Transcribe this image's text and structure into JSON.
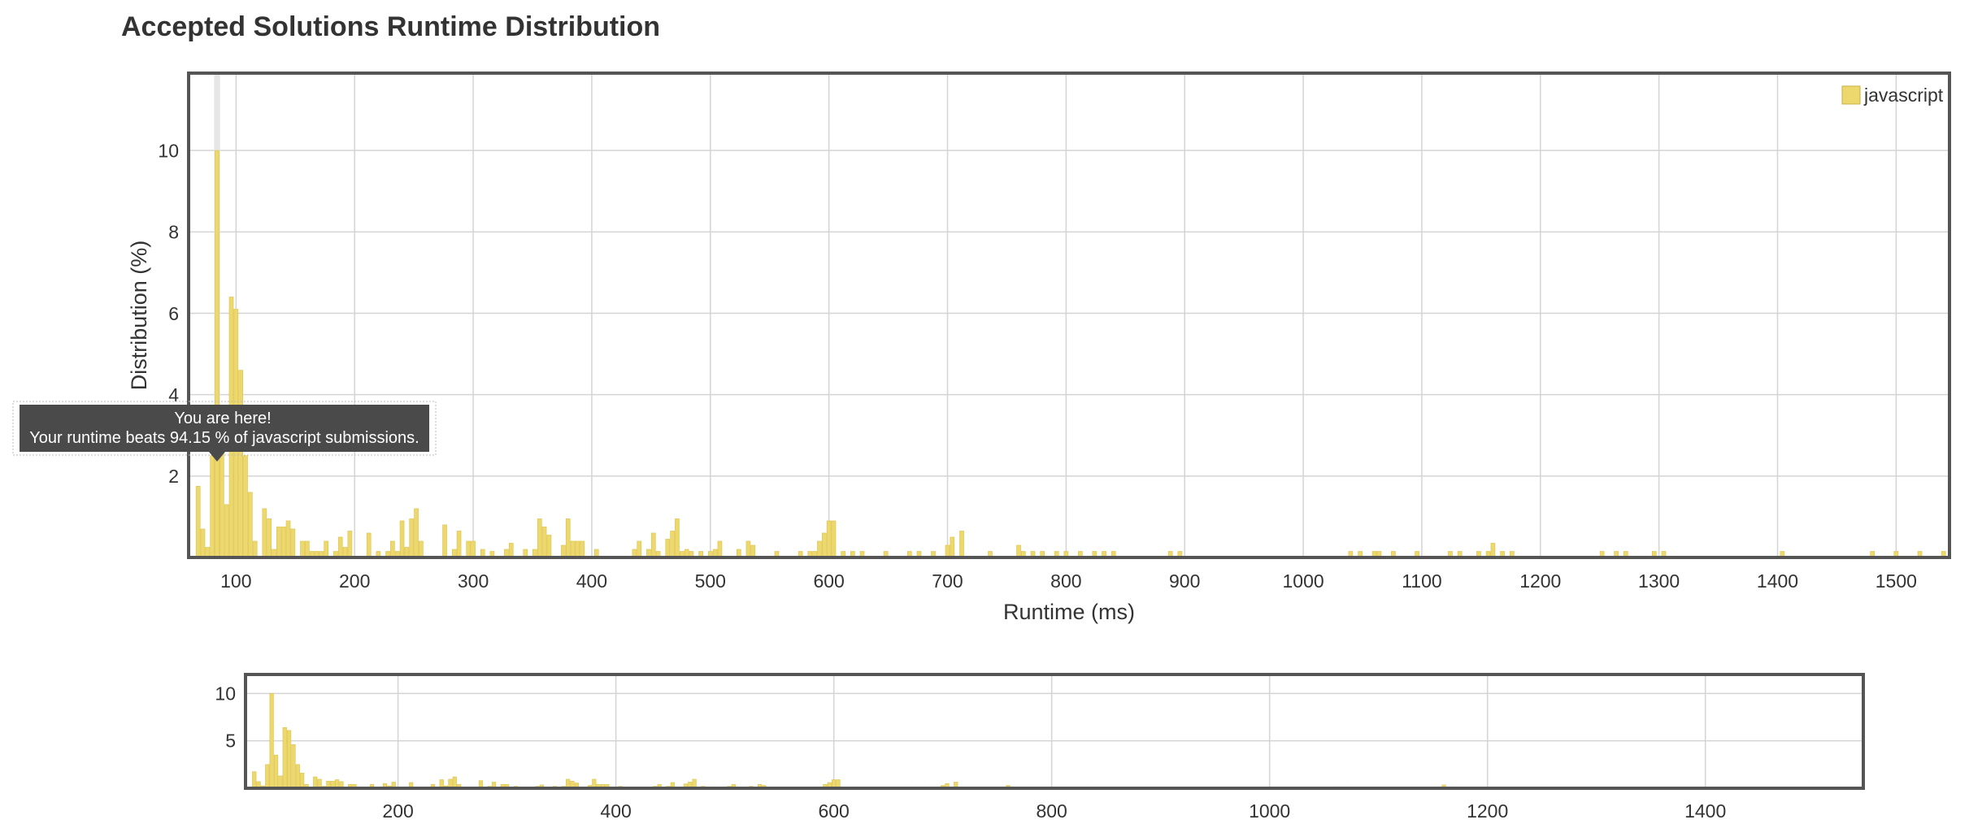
{
  "title": "Accepted Solutions Runtime Distribution",
  "tooltip": {
    "line1": "You are here!",
    "line2": "Your runtime beats 94.15 % of javascript submissions."
  },
  "colors": {
    "bar": "#edd86e",
    "bar_stroke": "#dcc24a",
    "highlight": "#e6e6e6",
    "tooltip_bg": "#4a4a4a",
    "frame": "#555555",
    "grid": "#d4d4d4"
  },
  "chart_data": [
    {
      "type": "bar",
      "role": "main",
      "xlabel": "Runtime (ms)",
      "ylabel": "Distribution (%)",
      "xlim": [
        60,
        1545
      ],
      "ylim": [
        0,
        11.9
      ],
      "xticks": [
        100,
        200,
        300,
        400,
        500,
        600,
        700,
        800,
        900,
        1000,
        1100,
        1200,
        1300,
        1400,
        1500
      ],
      "yticks": [
        2,
        4,
        6,
        8,
        10
      ],
      "grid": true,
      "legend": {
        "position": "top-right",
        "entries": [
          "javascript"
        ]
      },
      "highlight_x": 84,
      "series": [
        {
          "name": "javascript",
          "bin_width": 4,
          "points": [
            [
              68,
              1.75
            ],
            [
              72,
              0.7
            ],
            [
              76,
              0.25
            ],
            [
              80,
              2.5
            ],
            [
              84,
              10.0
            ],
            [
              88,
              3.5
            ],
            [
              92,
              1.3
            ],
            [
              96,
              6.4
            ],
            [
              100,
              6.1
            ],
            [
              104,
              4.6
            ],
            [
              108,
              2.5
            ],
            [
              112,
              1.6
            ],
            [
              116,
              0.4
            ],
            [
              124,
              1.2
            ],
            [
              128,
              0.95
            ],
            [
              132,
              0.2
            ],
            [
              136,
              0.75
            ],
            [
              140,
              0.75
            ],
            [
              144,
              0.9
            ],
            [
              148,
              0.7
            ],
            [
              156,
              0.4
            ],
            [
              160,
              0.4
            ],
            [
              164,
              0.15
            ],
            [
              168,
              0.15
            ],
            [
              172,
              0.15
            ],
            [
              176,
              0.4
            ],
            [
              184,
              0.15
            ],
            [
              188,
              0.5
            ],
            [
              192,
              0.25
            ],
            [
              196,
              0.65
            ],
            [
              212,
              0.6
            ],
            [
              220,
              0.15
            ],
            [
              228,
              0.15
            ],
            [
              232,
              0.4
            ],
            [
              236,
              0.15
            ],
            [
              240,
              0.9
            ],
            [
              244,
              0.25
            ],
            [
              248,
              0.95
            ],
            [
              252,
              1.2
            ],
            [
              256,
              0.4
            ],
            [
              276,
              0.8
            ],
            [
              284,
              0.2
            ],
            [
              288,
              0.65
            ],
            [
              296,
              0.4
            ],
            [
              300,
              0.4
            ],
            [
              308,
              0.2
            ],
            [
              316,
              0.15
            ],
            [
              328,
              0.2
            ],
            [
              332,
              0.35
            ],
            [
              344,
              0.2
            ],
            [
              352,
              0.2
            ],
            [
              356,
              0.95
            ],
            [
              360,
              0.75
            ],
            [
              364,
              0.55
            ],
            [
              376,
              0.3
            ],
            [
              380,
              0.95
            ],
            [
              384,
              0.4
            ],
            [
              388,
              0.4
            ],
            [
              392,
              0.4
            ],
            [
              404,
              0.2
            ],
            [
              436,
              0.2
            ],
            [
              440,
              0.4
            ],
            [
              448,
              0.2
            ],
            [
              452,
              0.6
            ],
            [
              456,
              0.15
            ],
            [
              464,
              0.45
            ],
            [
              468,
              0.65
            ],
            [
              472,
              0.95
            ],
            [
              476,
              0.15
            ],
            [
              480,
              0.2
            ],
            [
              484,
              0.15
            ],
            [
              492,
              0.15
            ],
            [
              500,
              0.15
            ],
            [
              504,
              0.2
            ],
            [
              508,
              0.4
            ],
            [
              524,
              0.2
            ],
            [
              532,
              0.4
            ],
            [
              536,
              0.3
            ],
            [
              556,
              0.15
            ],
            [
              576,
              0.15
            ],
            [
              584,
              0.15
            ],
            [
              588,
              0.15
            ],
            [
              592,
              0.4
            ],
            [
              596,
              0.6
            ],
            [
              600,
              0.9
            ],
            [
              604,
              0.9
            ],
            [
              612,
              0.15
            ],
            [
              620,
              0.15
            ],
            [
              628,
              0.15
            ],
            [
              648,
              0.15
            ],
            [
              668,
              0.15
            ],
            [
              676,
              0.15
            ],
            [
              688,
              0.15
            ],
            [
              700,
              0.3
            ],
            [
              704,
              0.5
            ],
            [
              712,
              0.65
            ],
            [
              736,
              0.15
            ],
            [
              760,
              0.3
            ],
            [
              764,
              0.15
            ],
            [
              772,
              0.15
            ],
            [
              780,
              0.15
            ],
            [
              792,
              0.15
            ],
            [
              800,
              0.15
            ],
            [
              812,
              0.15
            ],
            [
              824,
              0.15
            ],
            [
              832,
              0.15
            ],
            [
              840,
              0.15
            ],
            [
              888,
              0.15
            ],
            [
              896,
              0.15
            ],
            [
              1040,
              0.15
            ],
            [
              1048,
              0.15
            ],
            [
              1060,
              0.15
            ],
            [
              1064,
              0.15
            ],
            [
              1076,
              0.15
            ],
            [
              1096,
              0.15
            ],
            [
              1124,
              0.15
            ],
            [
              1132,
              0.15
            ],
            [
              1148,
              0.15
            ],
            [
              1156,
              0.15
            ],
            [
              1160,
              0.35
            ],
            [
              1168,
              0.15
            ],
            [
              1176,
              0.15
            ],
            [
              1252,
              0.15
            ],
            [
              1264,
              0.15
            ],
            [
              1272,
              0.15
            ],
            [
              1296,
              0.15
            ],
            [
              1304,
              0.15
            ],
            [
              1404,
              0.15
            ],
            [
              1480,
              0.15
            ],
            [
              1500,
              0.15
            ],
            [
              1520,
              0.15
            ],
            [
              1540,
              0.15
            ]
          ]
        }
      ]
    },
    {
      "type": "bar",
      "role": "navigator",
      "xlim": [
        60,
        1545
      ],
      "ylim": [
        0,
        12
      ],
      "xticks": [
        200,
        400,
        600,
        800,
        1000,
        1200,
        1400
      ],
      "yticks": [
        5,
        10
      ],
      "grid": true,
      "series_ref": "javascript"
    }
  ]
}
